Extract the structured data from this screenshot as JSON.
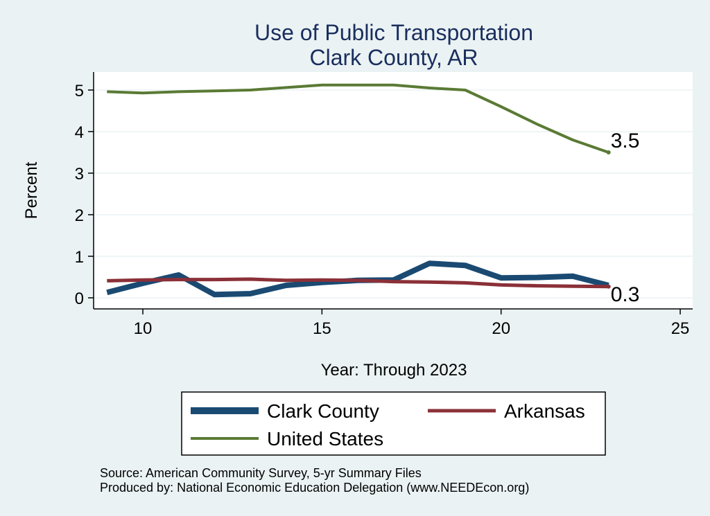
{
  "chart_data": {
    "type": "line",
    "title": [
      "Use of Public Transportation",
      "Clark County, AR"
    ],
    "xlabel": "Year: Through 2023",
    "ylabel": "Percent",
    "xlim": [
      9,
      25
    ],
    "ylim": [
      0,
      5
    ],
    "xticks": [
      10,
      15,
      20,
      25
    ],
    "yticks": [
      0,
      1,
      2,
      3,
      4,
      5
    ],
    "grid": true,
    "legend_position": "bottom",
    "x": [
      9,
      10,
      11,
      12,
      13,
      14,
      15,
      16,
      17,
      18,
      19,
      20,
      21,
      22,
      23
    ],
    "series": [
      {
        "name": "Clark County",
        "color": "#1a4a72",
        "values": [
          0.13,
          0.35,
          0.55,
          0.08,
          0.1,
          0.3,
          0.37,
          0.42,
          0.43,
          0.83,
          0.78,
          0.48,
          0.49,
          0.52,
          0.3
        ]
      },
      {
        "name": "Arkansas",
        "color": "#8b3038",
        "values": [
          0.41,
          0.43,
          0.44,
          0.44,
          0.45,
          0.42,
          0.43,
          0.42,
          0.39,
          0.38,
          0.36,
          0.31,
          0.29,
          0.28,
          0.27
        ]
      },
      {
        "name": "United States",
        "color": "#5a7a34",
        "values": [
          4.96,
          4.93,
          4.96,
          4.98,
          5.0,
          5.06,
          5.12,
          5.12,
          5.12,
          5.05,
          5.0,
          4.6,
          4.18,
          3.8,
          3.5
        ]
      }
    ],
    "end_labels": [
      {
        "series": "United States",
        "text": "3.5"
      },
      {
        "series": "Arkansas",
        "text": "0.3"
      }
    ],
    "footer": [
      "Source: American Community Survey, 5-yr Summary Files",
      "Produced by: National Economic Education Delegation (www.NEEDEcon.org)"
    ]
  }
}
